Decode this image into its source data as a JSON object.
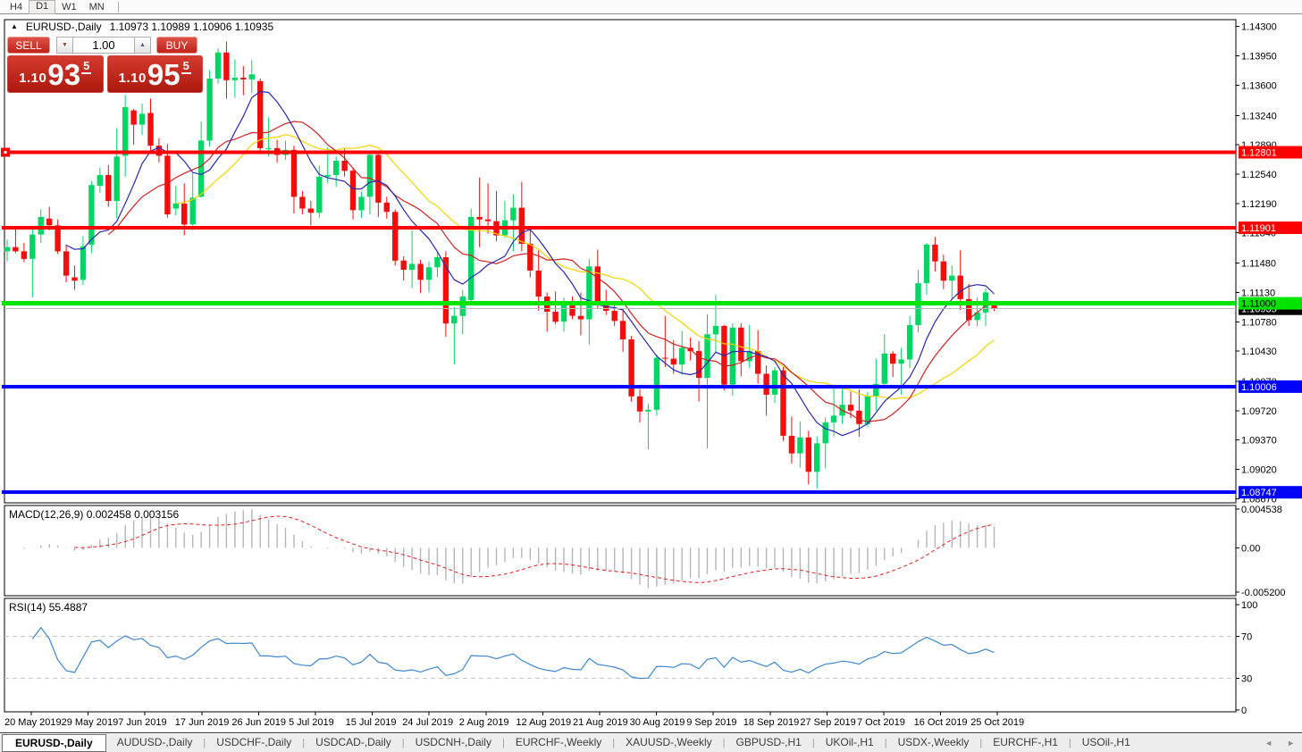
{
  "colors": {
    "bull": "#00d664",
    "bear": "#f40d0d",
    "macd_hist": "#b6b6b6",
    "macd_signal": "#e02020",
    "rsi": "#3e87d0",
    "level_dash": "#c4c4c4",
    "axis_text": "#000000",
    "panel_border": "#000000"
  },
  "toolbar": {
    "timeframes": [
      {
        "label": "H4",
        "active": false
      },
      {
        "label": "D1",
        "active": true
      },
      {
        "label": "W1",
        "active": false
      },
      {
        "label": "MN",
        "active": false
      }
    ]
  },
  "header": {
    "collapse_icon": "▲",
    "symbol_title": "EURUSD-,Daily",
    "ohlc": "1.10973 1.10989 1.10906 1.10935"
  },
  "trade_panel": {
    "sell_label": "SELL",
    "buy_label": "BUY",
    "volume": "1.00",
    "spinner_down": "▼",
    "spinner_up": "▲",
    "sell_price_prefix": "1.10",
    "sell_price_big": "93",
    "sell_price_sup": "5",
    "buy_price_prefix": "1.10",
    "buy_price_big": "95",
    "buy_price_sup": "5"
  },
  "indicators": {
    "macd_label": "MACD(12,26,9)",
    "macd_values": "0.002458 0.003156",
    "rsi_label": "RSI(14)",
    "rsi_value": "55.4887"
  },
  "chart_data": {
    "type": "candlestick",
    "title": "EURUSD-,Daily",
    "symbol": "EURUSD",
    "timeframe": "Daily",
    "current_bar_ohlc": {
      "open": 1.10973,
      "high": 1.10989,
      "low": 1.10906,
      "close": 1.10935
    },
    "ylim": [
      1.0867,
      1.143
    ],
    "price_axis_ticks": [
      "1.14300",
      "1.13950",
      "1.13600",
      "1.13240",
      "1.12890",
      "1.12540",
      "1.12190",
      "1.11840",
      "1.11480",
      "1.11130",
      "1.10780",
      "1.10430",
      "1.10070",
      "1.09720",
      "1.09370",
      "1.09020",
      "1.08670"
    ],
    "macd_axis": [
      {
        "label": "0.004538",
        "value": 0.004538
      },
      {
        "label": "0.00",
        "value": 0
      },
      {
        "label": "-0.005200",
        "value": -0.0052
      }
    ],
    "rsi_axis": [
      {
        "label": "100",
        "value": 100
      },
      {
        "label": "70",
        "value": 70
      },
      {
        "label": "30",
        "value": 30
      },
      {
        "label": "0",
        "value": 0
      }
    ],
    "rsi_levels": [
      70,
      30
    ],
    "date_labels": [
      "20 May 2019",
      "29 May 2019",
      "7 Jun 2019",
      "17 Jun 2019",
      "26 Jun 2019",
      "5 Jul 2019",
      "15 Jul 2019",
      "24 Jul 2019",
      "2 Aug 2019",
      "12 Aug 2019",
      "21 Aug 2019",
      "30 Aug 2019",
      "9 Sep 2019",
      "18 Sep 2019",
      "27 Sep 2019",
      "7 Oct 2019",
      "16 Oct 2019",
      "25 Oct 2019"
    ],
    "hlines": [
      {
        "price": 1.12801,
        "label": "1.12801",
        "color": "#ff0000",
        "text_color": "#ffffff",
        "width": 4,
        "handle": true
      },
      {
        "price": 1.11901,
        "label": "1.11901",
        "color": "#ff0000",
        "text_color": "#ffffff",
        "width": 4,
        "handle": false
      },
      {
        "price": 1.11,
        "label": "1.11000",
        "color": "#00e400",
        "text_color": "#000000",
        "width": 5,
        "handle": false
      },
      {
        "price": 1.10006,
        "label": "1.10006",
        "color": "#0000ff",
        "text_color": "#ffffff",
        "width": 4,
        "handle": false
      },
      {
        "price": 1.08747,
        "label": "1.08747",
        "color": "#0000ff",
        "text_color": "#ffffff",
        "width": 4,
        "handle": false
      }
    ],
    "current_price": {
      "value": 1.10935,
      "label": "1.10935",
      "line_color": "#b8b8b8",
      "label_bg": "#000000",
      "text_color": "#ffffff"
    },
    "moving_averages": [
      {
        "period": 21,
        "type": "sma",
        "color": "#f2d400"
      },
      {
        "period": 13,
        "type": "sma",
        "color": "#d42020"
      },
      {
        "period": 8,
        "type": "sma",
        "color": "#2828b4"
      }
    ],
    "macd": {
      "fast": 12,
      "slow": 26,
      "signal": 9
    },
    "rsi": {
      "period": 14
    },
    "dates": [
      "2019-05-20",
      "2019-05-21",
      "2019-05-22",
      "2019-05-23",
      "2019-05-24",
      "2019-05-27",
      "2019-05-28",
      "2019-05-29",
      "2019-05-30",
      "2019-05-31",
      "2019-06-03",
      "2019-06-04",
      "2019-06-05",
      "2019-06-06",
      "2019-06-07",
      "2019-06-10",
      "2019-06-11",
      "2019-06-12",
      "2019-06-13",
      "2019-06-14",
      "2019-06-17",
      "2019-06-18",
      "2019-06-19",
      "2019-06-20",
      "2019-06-21",
      "2019-06-24",
      "2019-06-25",
      "2019-06-26",
      "2019-06-27",
      "2019-06-28",
      "2019-07-01",
      "2019-07-02",
      "2019-07-03",
      "2019-07-04",
      "2019-07-05",
      "2019-07-08",
      "2019-07-09",
      "2019-07-10",
      "2019-07-11",
      "2019-07-12",
      "2019-07-15",
      "2019-07-16",
      "2019-07-17",
      "2019-07-18",
      "2019-07-19",
      "2019-07-22",
      "2019-07-23",
      "2019-07-24",
      "2019-07-25",
      "2019-07-26",
      "2019-07-29",
      "2019-07-30",
      "2019-07-31",
      "2019-08-01",
      "2019-08-02",
      "2019-08-05",
      "2019-08-06",
      "2019-08-07",
      "2019-08-08",
      "2019-08-09",
      "2019-08-12",
      "2019-08-13",
      "2019-08-14",
      "2019-08-15",
      "2019-08-16",
      "2019-08-19",
      "2019-08-20",
      "2019-08-21",
      "2019-08-22",
      "2019-08-23",
      "2019-08-26",
      "2019-08-27",
      "2019-08-28",
      "2019-08-29",
      "2019-08-30",
      "2019-09-02",
      "2019-09-03",
      "2019-09-04",
      "2019-09-05",
      "2019-09-06",
      "2019-09-09",
      "2019-09-10",
      "2019-09-11",
      "2019-09-12",
      "2019-09-13",
      "2019-09-16",
      "2019-09-17",
      "2019-09-18",
      "2019-09-19",
      "2019-09-20",
      "2019-09-23",
      "2019-09-24",
      "2019-09-25",
      "2019-09-26",
      "2019-09-27",
      "2019-09-30",
      "2019-10-01",
      "2019-10-02",
      "2019-10-03",
      "2019-10-04",
      "2019-10-07",
      "2019-10-08",
      "2019-10-09",
      "2019-10-10",
      "2019-10-11",
      "2019-10-14",
      "2019-10-15",
      "2019-10-16",
      "2019-10-17",
      "2019-10-18",
      "2019-10-21",
      "2019-10-22",
      "2019-10-23",
      "2019-10-24",
      "2019-10-25",
      "2019-10-28",
      "2019-10-29",
      "2019-10-30"
    ],
    "candles": [
      [
        1.1162,
        1.1176,
        1.115,
        1.1167
      ],
      [
        1.1167,
        1.1188,
        1.116,
        1.1162
      ],
      [
        1.1162,
        1.1172,
        1.1149,
        1.1153
      ],
      [
        1.1153,
        1.1188,
        1.1107,
        1.1182
      ],
      [
        1.1182,
        1.1212,
        1.1172,
        1.1203
      ],
      [
        1.1201,
        1.1215,
        1.1187,
        1.1193
      ],
      [
        1.1193,
        1.12,
        1.1159,
        1.1162
      ],
      [
        1.1162,
        1.117,
        1.1125,
        1.1133
      ],
      [
        1.1131,
        1.1145,
        1.1116,
        1.1127
      ],
      [
        1.1128,
        1.118,
        1.1122,
        1.1168
      ],
      [
        1.117,
        1.1246,
        1.116,
        1.1241
      ],
      [
        1.124,
        1.1262,
        1.1232,
        1.1253
      ],
      [
        1.1253,
        1.1265,
        1.1215,
        1.1222
      ],
      [
        1.1222,
        1.1309,
        1.1201,
        1.1275
      ],
      [
        1.1276,
        1.1348,
        1.1251,
        1.1334
      ],
      [
        1.133,
        1.1332,
        1.1289,
        1.1313
      ],
      [
        1.1313,
        1.1338,
        1.1301,
        1.1326
      ],
      [
        1.1327,
        1.1344,
        1.1282,
        1.1288
      ],
      [
        1.1288,
        1.1297,
        1.1268,
        1.1276
      ],
      [
        1.1276,
        1.129,
        1.1202,
        1.1206
      ],
      [
        1.1213,
        1.124,
        1.1205,
        1.1219
      ],
      [
        1.1219,
        1.1243,
        1.1181,
        1.1194
      ],
      [
        1.1194,
        1.1255,
        1.1187,
        1.1226
      ],
      [
        1.1227,
        1.1317,
        1.1226,
        1.1294
      ],
      [
        1.1294,
        1.1378,
        1.1287,
        1.1368
      ],
      [
        1.1368,
        1.1404,
        1.1362,
        1.1399
      ],
      [
        1.1399,
        1.1412,
        1.1344,
        1.1366
      ],
      [
        1.1366,
        1.1391,
        1.1345,
        1.1369
      ],
      [
        1.1369,
        1.1383,
        1.1348,
        1.1367
      ],
      [
        1.1367,
        1.139,
        1.1351,
        1.1373
      ],
      [
        1.1365,
        1.1368,
        1.128,
        1.1285
      ],
      [
        1.1285,
        1.1322,
        1.1275,
        1.1285
      ],
      [
        1.1285,
        1.1295,
        1.1268,
        1.1277
      ],
      [
        1.1277,
        1.1294,
        1.1271,
        1.1283
      ],
      [
        1.1283,
        1.1288,
        1.1207,
        1.1227
      ],
      [
        1.1227,
        1.1234,
        1.1206,
        1.1213
      ],
      [
        1.1213,
        1.1222,
        1.1193,
        1.1208
      ],
      [
        1.1208,
        1.1264,
        1.1202,
        1.1251
      ],
      [
        1.1251,
        1.1286,
        1.1243,
        1.1253
      ],
      [
        1.1253,
        1.1275,
        1.1239,
        1.127
      ],
      [
        1.127,
        1.1284,
        1.1251,
        1.1258
      ],
      [
        1.1258,
        1.1262,
        1.12,
        1.1211
      ],
      [
        1.1211,
        1.1233,
        1.1202,
        1.1227
      ],
      [
        1.1227,
        1.1282,
        1.1206,
        1.1277
      ],
      [
        1.1277,
        1.1282,
        1.1203,
        1.122
      ],
      [
        1.122,
        1.1227,
        1.1201,
        1.1209
      ],
      [
        1.1209,
        1.1212,
        1.1145,
        1.1151
      ],
      [
        1.1151,
        1.1156,
        1.1127,
        1.114
      ],
      [
        1.114,
        1.1187,
        1.1118,
        1.1147
      ],
      [
        1.1147,
        1.1152,
        1.1112,
        1.1128
      ],
      [
        1.1128,
        1.115,
        1.1113,
        1.1143
      ],
      [
        1.1143,
        1.1162,
        1.1131,
        1.1155
      ],
      [
        1.1155,
        1.1162,
        1.106,
        1.1076
      ],
      [
        1.1076,
        1.1096,
        1.1027,
        1.1085
      ],
      [
        1.1085,
        1.1116,
        1.1063,
        1.1108
      ],
      [
        1.1104,
        1.1213,
        1.1101,
        1.1203
      ],
      [
        1.1203,
        1.125,
        1.1167,
        1.12
      ],
      [
        1.12,
        1.1243,
        1.1183,
        1.1198
      ],
      [
        1.1198,
        1.1234,
        1.1174,
        1.1181
      ],
      [
        1.1181,
        1.1222,
        1.1178,
        1.1199
      ],
      [
        1.1199,
        1.123,
        1.1162,
        1.1214
      ],
      [
        1.1214,
        1.1245,
        1.1162,
        1.1171
      ],
      [
        1.1171,
        1.119,
        1.1131,
        1.1139
      ],
      [
        1.1139,
        1.1163,
        1.1091,
        1.1108
      ],
      [
        1.1108,
        1.1113,
        1.1066,
        1.109
      ],
      [
        1.109,
        1.1114,
        1.1075,
        1.1078
      ],
      [
        1.1078,
        1.1107,
        1.1066,
        1.1099
      ],
      [
        1.1099,
        1.1108,
        1.1081,
        1.1085
      ],
      [
        1.1085,
        1.1113,
        1.1062,
        1.1081
      ],
      [
        1.1081,
        1.1153,
        1.1051,
        1.1144
      ],
      [
        1.1144,
        1.1164,
        1.1094,
        1.1101
      ],
      [
        1.1101,
        1.1116,
        1.1086,
        1.1091
      ],
      [
        1.1091,
        1.1098,
        1.1073,
        1.1079
      ],
      [
        1.1079,
        1.1093,
        1.1042,
        1.1057
      ],
      [
        1.1057,
        1.1061,
        1.0983,
        1.0989
      ],
      [
        1.0989,
        1.0998,
        1.0958,
        1.0971
      ],
      [
        1.0971,
        1.098,
        1.0926,
        1.0973
      ],
      [
        1.0973,
        1.1039,
        1.0966,
        1.1035
      ],
      [
        1.1035,
        1.1085,
        1.1024,
        1.1034
      ],
      [
        1.1034,
        1.1056,
        1.1016,
        1.1027
      ],
      [
        1.1027,
        1.1067,
        1.1015,
        1.1047
      ],
      [
        1.1047,
        1.1059,
        1.1032,
        1.1043
      ],
      [
        1.1043,
        1.1055,
        1.0983,
        1.1011
      ],
      [
        1.1011,
        1.1087,
        1.0927,
        1.1063
      ],
      [
        1.1063,
        1.111,
        1.1042,
        1.1073
      ],
      [
        1.1073,
        1.1074,
        1.0996,
        1.1003
      ],
      [
        1.1003,
        1.1076,
        1.099,
        1.1071
      ],
      [
        1.1071,
        1.1076,
        1.1013,
        1.1031
      ],
      [
        1.1031,
        1.1074,
        1.1023,
        1.1043
      ],
      [
        1.1043,
        1.1068,
        1.1004,
        1.1016
      ],
      [
        1.1016,
        1.1026,
        1.0966,
        1.0991
      ],
      [
        1.0991,
        1.1024,
        1.0981,
        1.102
      ],
      [
        1.102,
        1.1024,
        1.0936,
        1.0942
      ],
      [
        1.0942,
        1.0965,
        1.0909,
        1.0921
      ],
      [
        1.0921,
        1.0959,
        1.0904,
        1.094
      ],
      [
        1.094,
        1.0948,
        1.0884,
        1.0899
      ],
      [
        1.0899,
        1.0941,
        1.0879,
        1.0933
      ],
      [
        1.0933,
        1.0964,
        1.0903,
        1.0958
      ],
      [
        1.0958,
        1.0999,
        1.0941,
        1.0966
      ],
      [
        1.0966,
        1.0999,
        1.0956,
        1.0979
      ],
      [
        1.0979,
        1.0995,
        1.0963,
        1.0972
      ],
      [
        1.0972,
        1.0997,
        1.0941,
        1.0956
      ],
      [
        1.0956,
        1.0994,
        1.0953,
        1.0989
      ],
      [
        1.0989,
        1.1034,
        1.0972,
        1.1004
      ],
      [
        1.1004,
        1.1063,
        1.1002,
        1.104
      ],
      [
        1.104,
        1.1043,
        1.1012,
        1.1028
      ],
      [
        1.1028,
        1.1047,
        1.0991,
        1.1033
      ],
      [
        1.1033,
        1.1085,
        1.1023,
        1.1074
      ],
      [
        1.1074,
        1.114,
        1.1065,
        1.1124
      ],
      [
        1.1124,
        1.1172,
        1.111,
        1.117
      ],
      [
        1.117,
        1.1179,
        1.1138,
        1.115
      ],
      [
        1.115,
        1.1158,
        1.1117,
        1.1127
      ],
      [
        1.1127,
        1.1145,
        1.1105,
        1.1133
      ],
      [
        1.1133,
        1.1163,
        1.1092,
        1.1105
      ],
      [
        1.1105,
        1.1123,
        1.1073,
        1.108
      ],
      [
        1.108,
        1.1107,
        1.1073,
        1.1089
      ],
      [
        1.1089,
        1.1118,
        1.1073,
        1.1113
      ],
      [
        1.10973,
        1.10989,
        1.10906,
        1.10935
      ]
    ]
  },
  "tabs": {
    "items": [
      {
        "label": "EURUSD-,Daily",
        "active": true
      },
      {
        "label": "AUDUSD-,Daily",
        "active": false
      },
      {
        "label": "USDCHF-,Daily",
        "active": false
      },
      {
        "label": "USDCAD-,Daily",
        "active": false
      },
      {
        "label": "USDCNH-,Daily",
        "active": false
      },
      {
        "label": "EURCHF-,Weekly",
        "active": false
      },
      {
        "label": "XAUUSD-,Weekly",
        "active": false
      },
      {
        "label": "GBPUSD-,H1",
        "active": false
      },
      {
        "label": "UKOil-,H1",
        "active": false
      },
      {
        "label": "USDX-,Weekly",
        "active": false
      },
      {
        "label": "EURCHF-,H1",
        "active": false
      },
      {
        "label": "USOil-,H1",
        "active": false
      }
    ],
    "scroll_left": "◄",
    "scroll_right": "►"
  }
}
